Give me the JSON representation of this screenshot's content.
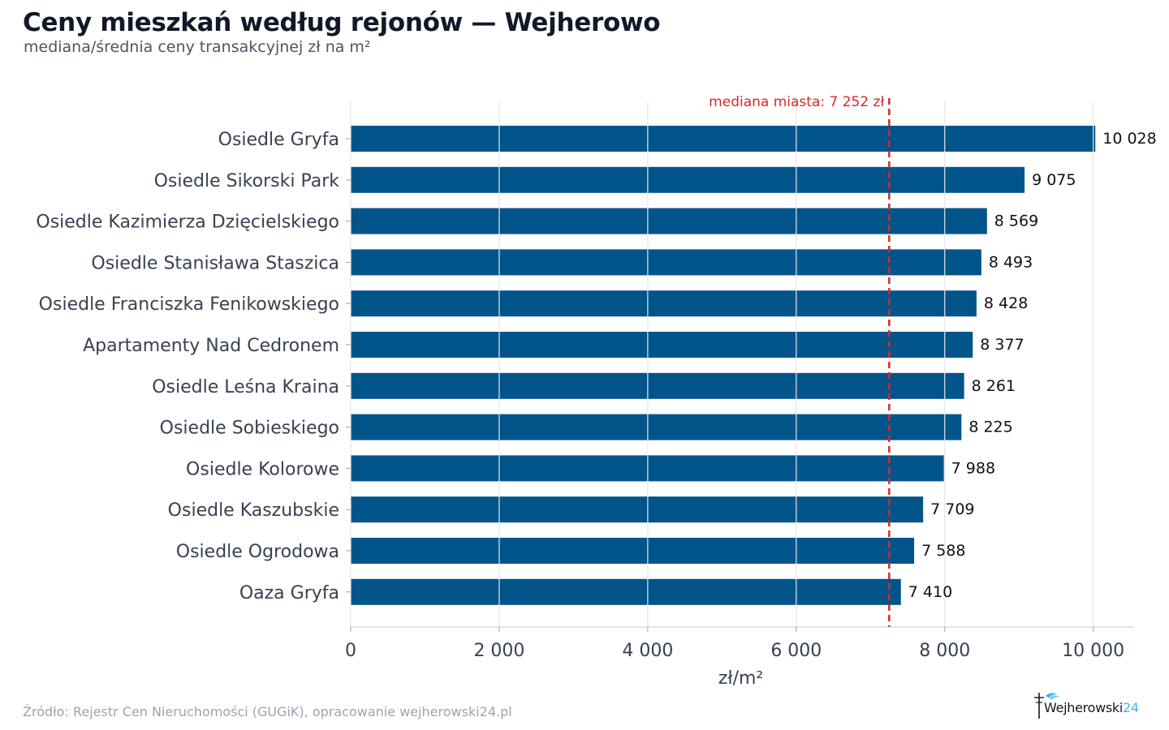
{
  "header": {
    "title": "Ceny mieszkań według rejonów — Wejherowo",
    "subtitle": "mediana/średnia ceny transakcyjnej zł na m²"
  },
  "footer": {
    "source": "Źródło: Rejestr Cen Nieruchomości (GUGiK), opracowanie wejherowski24.pl",
    "logo_text": "Wejherowski",
    "logo_num": "24"
  },
  "colors": {
    "bar": "#02558b",
    "median_line": "#d62728",
    "grid": "#e5e7eb",
    "label_text": "#374151",
    "value_text": "#111111"
  },
  "chart_data": {
    "type": "bar",
    "orientation": "horizontal",
    "categories": [
      "Osiedle Gryfa",
      "Osiedle Sikorski Park",
      "Osiedle Kazimierza Dzięcielskiego",
      "Osiedle Stanisława Staszica",
      "Osiedle Franciszka Fenikowskiego",
      "Apartamenty Nad Cedronem",
      "Osiedle Leśna Kraina",
      "Osiedle Sobieskiego",
      "Osiedle Kolorowe",
      "Osiedle Kaszubskie",
      "Osiedle Ogrodowa",
      "Oaza Gryfa"
    ],
    "values": [
      10028,
      9075,
      8569,
      8493,
      8428,
      8377,
      8261,
      8225,
      7988,
      7709,
      7588,
      7410
    ],
    "value_labels": [
      "10 028",
      "9 075",
      "8 569",
      "8 493",
      "8 428",
      "8 377",
      "8 261",
      "8 225",
      "7 988",
      "7 709",
      "7 588",
      "7 410"
    ],
    "xlabel": "zł/m²",
    "ylabel": "",
    "xlim": [
      0,
      10550
    ],
    "xticks": [
      0,
      2000,
      4000,
      6000,
      8000,
      10000
    ],
    "xtick_labels": [
      "0",
      "2 000",
      "4 000",
      "6 000",
      "8 000",
      "10 000"
    ],
    "grid": true,
    "reference_line": {
      "value": 7252,
      "label": "mediana miasta: 7 252 zł",
      "style": "dashed"
    }
  }
}
